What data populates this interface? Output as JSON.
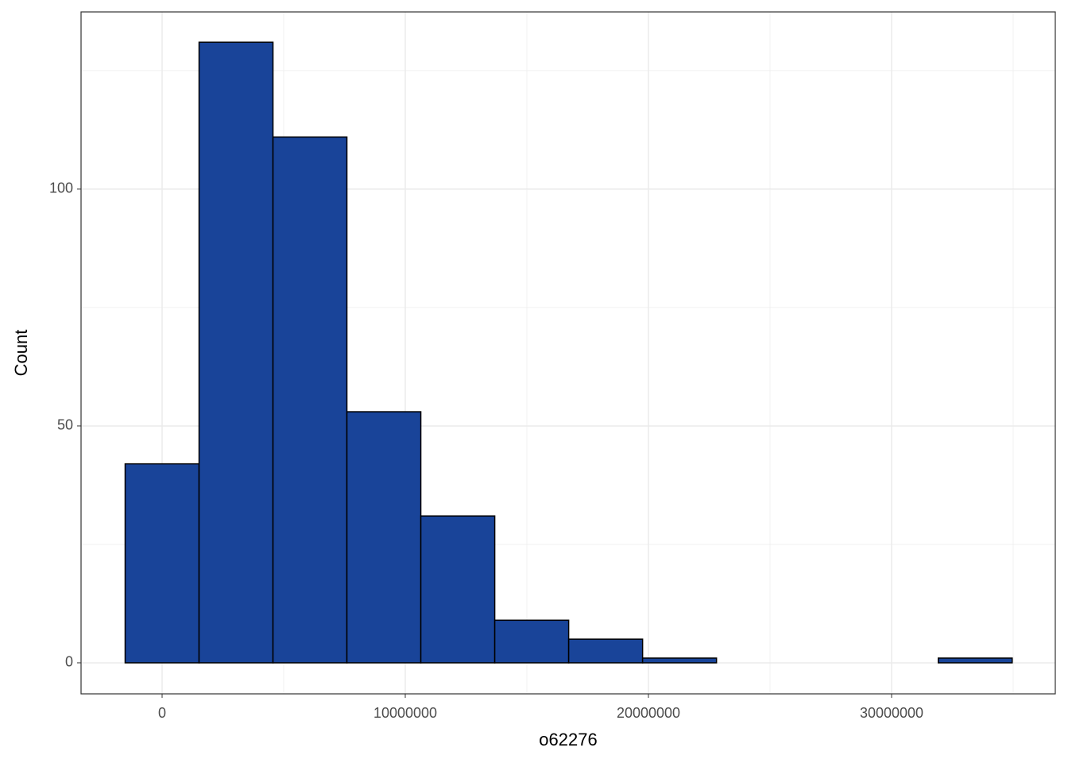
{
  "chart_data": {
    "type": "histogram",
    "x_label": "o62276",
    "y_label": "Count",
    "bins": [
      -1520000,
      1520000,
      4560000,
      7600000,
      10640000,
      13680000,
      16720000,
      19760000,
      22800000,
      25840000,
      28880000,
      31920000,
      34960000
    ],
    "values": [
      42,
      131,
      111,
      53,
      31,
      9,
      5,
      1,
      0,
      0,
      0,
      1
    ],
    "color": "#194499",
    "edge_color": "#000000",
    "xlim": [
      -3333000,
      36732000
    ],
    "ylim": [
      -6.55,
      137.4
    ],
    "xticks": [
      0,
      10000000,
      20000000,
      30000000
    ],
    "yticks": [
      0,
      50,
      100
    ],
    "grid": true
  }
}
